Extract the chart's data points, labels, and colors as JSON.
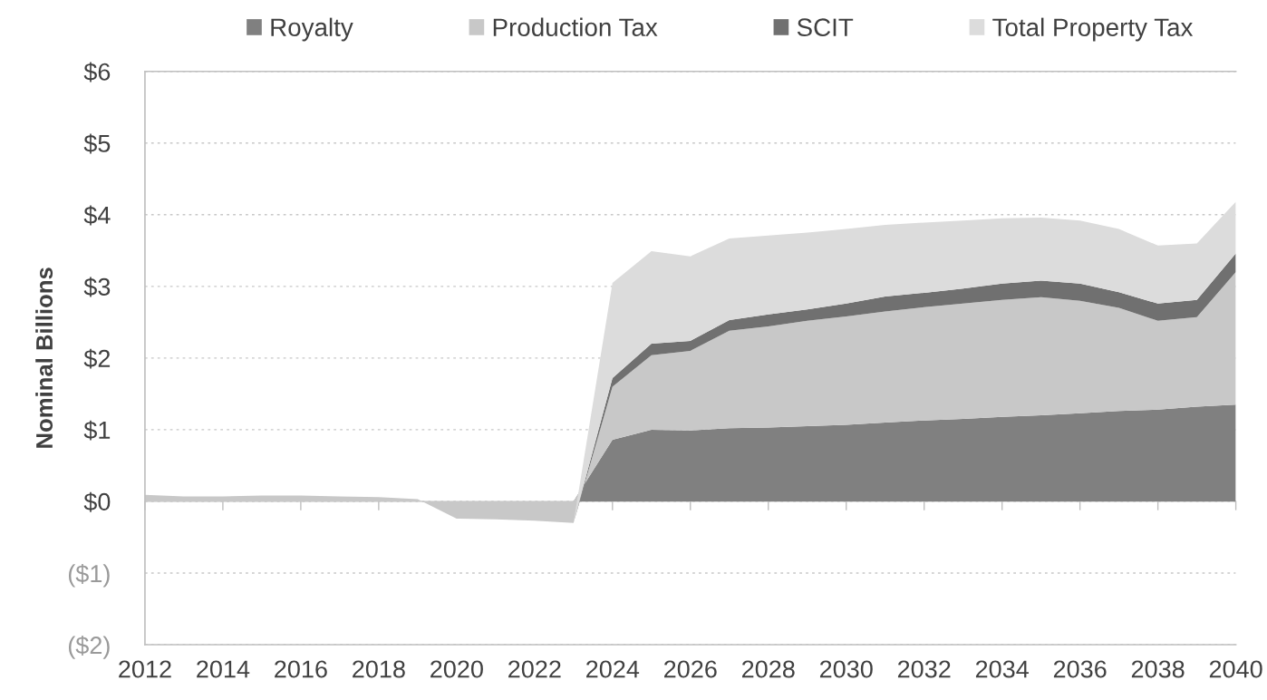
{
  "chart_data": {
    "type": "area",
    "stacked": true,
    "ylabel": "Nominal Billions",
    "x": [
      2012,
      2013,
      2014,
      2015,
      2016,
      2017,
      2018,
      2019,
      2020,
      2021,
      2022,
      2023,
      2024,
      2025,
      2026,
      2027,
      2028,
      2029,
      2030,
      2031,
      2032,
      2033,
      2034,
      2035,
      2036,
      2037,
      2038,
      2039,
      2040
    ],
    "series": [
      {
        "name": "Royalty",
        "color": "#808080",
        "values": [
          0,
          0,
          0,
          0,
          0,
          0,
          0,
          0,
          0,
          0,
          0,
          0,
          0.86,
          1.0,
          0.99,
          1.02,
          1.03,
          1.05,
          1.07,
          1.1,
          1.13,
          1.15,
          1.18,
          1.2,
          1.23,
          1.26,
          1.28,
          1.32,
          1.35
        ]
      },
      {
        "name": "Production Tax",
        "color": "#c8c8c8",
        "values": [
          0.09,
          0.07,
          0.07,
          0.08,
          0.08,
          0.07,
          0.06,
          0.03,
          -0.24,
          -0.25,
          -0.27,
          -0.3,
          0.74,
          1.04,
          1.11,
          1.36,
          1.41,
          1.47,
          1.51,
          1.55,
          1.58,
          1.61,
          1.63,
          1.65,
          1.57,
          1.44,
          1.24,
          1.25,
          1.85
        ]
      },
      {
        "name": "SCIT",
        "color": "#707070",
        "values": [
          0,
          0,
          0,
          0,
          0,
          0,
          0,
          0,
          0,
          0,
          0,
          0,
          0.12,
          0.16,
          0.14,
          0.15,
          0.17,
          0.16,
          0.18,
          0.21,
          0.2,
          0.21,
          0.23,
          0.23,
          0.24,
          0.22,
          0.24,
          0.24,
          0.26
        ]
      },
      {
        "name": "Total Property Tax",
        "color": "#dcdcdc",
        "values": [
          0,
          0,
          0,
          0,
          0,
          0,
          0,
          0,
          0,
          0,
          0,
          0,
          1.33,
          1.29,
          1.18,
          1.14,
          1.1,
          1.07,
          1.04,
          1.0,
          0.98,
          0.95,
          0.91,
          0.88,
          0.88,
          0.88,
          0.81,
          0.79,
          0.72
        ]
      }
    ],
    "xlim": [
      2012,
      2040
    ],
    "xticks": [
      2012,
      2014,
      2016,
      2018,
      2020,
      2022,
      2024,
      2026,
      2028,
      2030,
      2032,
      2034,
      2036,
      2038,
      2040
    ],
    "ylim": [
      -2,
      6
    ],
    "yticks": [
      {
        "value": -2,
        "label": "($2)"
      },
      {
        "value": -1,
        "label": "($1)"
      },
      {
        "value": 0,
        "label": "$0"
      },
      {
        "value": 1,
        "label": "$1"
      },
      {
        "value": 2,
        "label": "$2"
      },
      {
        "value": 3,
        "label": "$3"
      },
      {
        "value": 4,
        "label": "$4"
      },
      {
        "value": 5,
        "label": "$5"
      },
      {
        "value": 6,
        "label": "$6"
      }
    ],
    "grid": "y",
    "legend": "top"
  }
}
